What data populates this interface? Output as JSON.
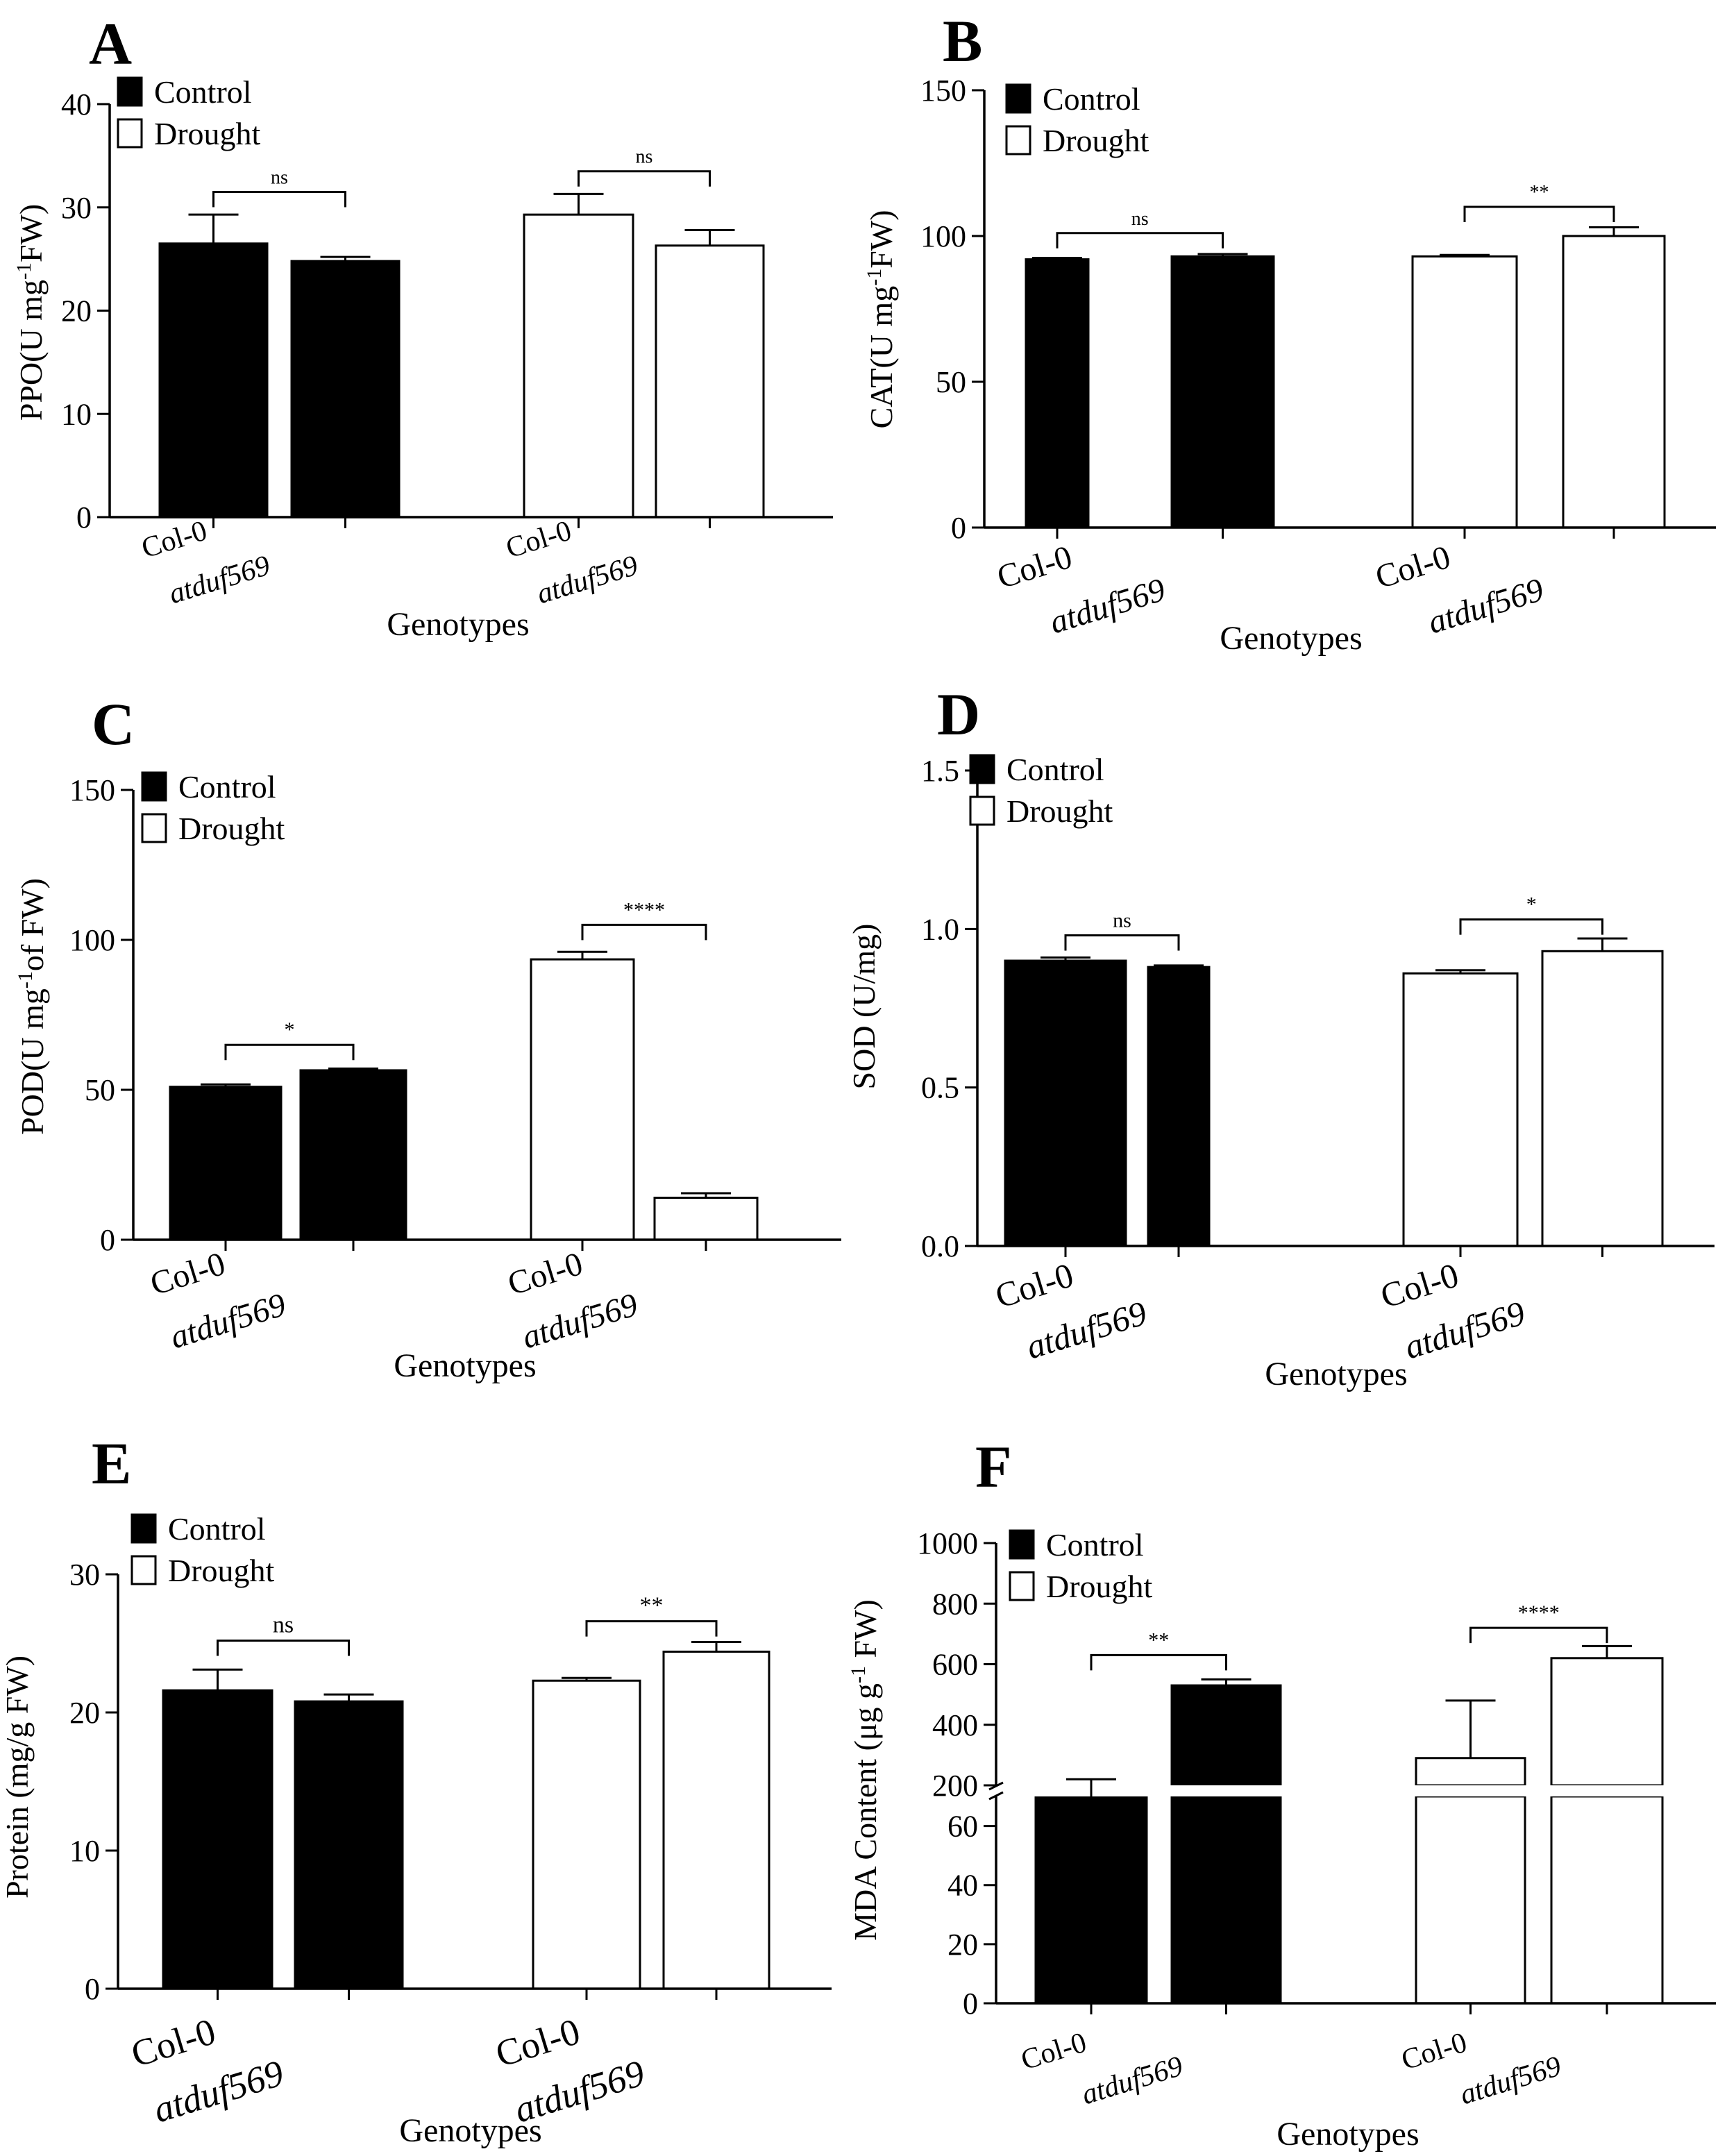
{
  "figure": {
    "panels": [
      "A",
      "B",
      "C",
      "D",
      "E",
      "F"
    ]
  },
  "chart_data": [
    {
      "panel": "A",
      "type": "bar",
      "ylabel_main": "PPO(U mg",
      "ylabel_sup": "-1",
      "ylabel_tail": "FW)",
      "xlabel": "Genotypes",
      "categories": [
        "Col-0",
        "atduf569",
        "Col-0",
        "atduf569"
      ],
      "groups": [
        "Control",
        "Control",
        "Drought",
        "Drought"
      ],
      "values": [
        26.5,
        24.8,
        29.3,
        26.3
      ],
      "errors": [
        2.8,
        0.4,
        2.0,
        1.5
      ],
      "yticks": [
        0,
        10,
        20,
        30,
        40
      ],
      "ylim": [
        0,
        40
      ],
      "legend": [
        "Control",
        "Drought"
      ],
      "significance": [
        {
          "bars": [
            0,
            1
          ],
          "label": "ns",
          "y": 31.5
        },
        {
          "bars": [
            2,
            3
          ],
          "label": "ns",
          "y": 33.5
        }
      ]
    },
    {
      "panel": "B",
      "type": "bar",
      "ylabel_main": "CAT(U mg",
      "ylabel_sup": "-1",
      "ylabel_tail": "FW)",
      "xlabel": "Genotypes",
      "categories": [
        "Col-0",
        "atduf569",
        "Col-0",
        "atduf569"
      ],
      "groups": [
        "Control",
        "Control",
        "Drought",
        "Drought"
      ],
      "values": [
        92,
        93,
        93,
        100
      ],
      "errors": [
        0.5,
        0.8,
        0.5,
        3.0
      ],
      "yticks": [
        0,
        50,
        100,
        150
      ],
      "ylim": [
        0,
        150
      ],
      "legend": [
        "Control",
        "Drought"
      ],
      "significance": [
        {
          "bars": [
            0,
            1
          ],
          "label": "ns",
          "y": 101
        },
        {
          "bars": [
            2,
            3
          ],
          "label": "**",
          "y": 110
        }
      ]
    },
    {
      "panel": "C",
      "type": "bar",
      "ylabel_main": "POD(U mg",
      "ylabel_sup": "-1",
      "ylabel_tail": "of FW)",
      "xlabel": "Genotypes",
      "categories": [
        "Col-0",
        "atduf569",
        "Col-0",
        "atduf569"
      ],
      "groups": [
        "Control",
        "Control",
        "Drought",
        "Drought"
      ],
      "values": [
        51,
        56.5,
        93.5,
        14
      ],
      "errors": [
        0.8,
        0.6,
        2.5,
        1.5
      ],
      "yticks": [
        0,
        50,
        100,
        150
      ],
      "ylim": [
        0,
        150
      ],
      "legend": [
        "Control",
        "Drought"
      ],
      "significance": [
        {
          "bars": [
            0,
            1
          ],
          "label": "*",
          "y": 65
        },
        {
          "bars": [
            2,
            3
          ],
          "label": "****",
          "y": 105
        }
      ]
    },
    {
      "panel": "D",
      "type": "bar",
      "ylabel_main": "SOD (U/mg)",
      "ylabel_sup": "",
      "ylabel_tail": "",
      "xlabel": "Genotypes",
      "categories": [
        "Col-0",
        "atduf569",
        "Col-0",
        "atduf569"
      ],
      "groups": [
        "Control",
        "Control",
        "Drought",
        "Drought"
      ],
      "values": [
        0.9,
        0.88,
        0.86,
        0.93
      ],
      "errors": [
        0.01,
        0.005,
        0.01,
        0.04
      ],
      "yticks": [
        0.0,
        0.5,
        1.0,
        1.5
      ],
      "ytick_labels": [
        "0.0",
        "0.5",
        "1.0",
        "1.5"
      ],
      "ylim": [
        0,
        1.5
      ],
      "legend": [
        "Control",
        "Drought"
      ],
      "significance": [
        {
          "bars": [
            0,
            1
          ],
          "label": "ns",
          "y": 0.98
        },
        {
          "bars": [
            2,
            3
          ],
          "label": "*",
          "y": 1.03
        }
      ]
    },
    {
      "panel": "E",
      "type": "bar",
      "ylabel_main": "Protein (mg/g FW)",
      "ylabel_sup": "",
      "ylabel_tail": "",
      "xlabel": "Genotypes",
      "categories": [
        "Col-0",
        "atduf569",
        "Col-0",
        "atduf569"
      ],
      "groups": [
        "Control",
        "Control",
        "Drought",
        "Drought"
      ],
      "values": [
        21.6,
        20.8,
        22.3,
        24.4
      ],
      "errors": [
        1.5,
        0.5,
        0.2,
        0.7
      ],
      "yticks": [
        0,
        10,
        20,
        30
      ],
      "ylim": [
        0,
        30
      ],
      "legend": [
        "Control",
        "Drought"
      ],
      "significance": [
        {
          "bars": [
            0,
            1
          ],
          "label": "ns",
          "y": 25.2
        },
        {
          "bars": [
            2,
            3
          ],
          "label": "**",
          "y": 26.6
        }
      ]
    },
    {
      "panel": "F",
      "type": "bar",
      "ylabel_main": "MDA Content (μg g",
      "ylabel_sup": "-1",
      "ylabel_tail": " FW)",
      "xlabel": "Genotypes",
      "categories": [
        "Col-0",
        "atduf569",
        "Col-0",
        "atduf569"
      ],
      "groups": [
        "Control",
        "Control",
        "Drought",
        "Drought"
      ],
      "values": [
        120,
        530,
        290,
        620
      ],
      "errors": [
        100,
        20,
        190,
        40
      ],
      "broken_axis": {
        "lower": [
          0,
          70
        ],
        "upper": [
          200,
          1000
        ]
      },
      "yticks_lower": [
        0,
        20,
        40,
        60
      ],
      "yticks_upper": [
        200,
        400,
        600,
        800,
        1000
      ],
      "legend": [
        "Control",
        "Drought"
      ],
      "significance": [
        {
          "bars": [
            0,
            1
          ],
          "label": "**",
          "y": 630
        },
        {
          "bars": [
            2,
            3
          ],
          "label": "****",
          "y": 720
        }
      ]
    }
  ]
}
